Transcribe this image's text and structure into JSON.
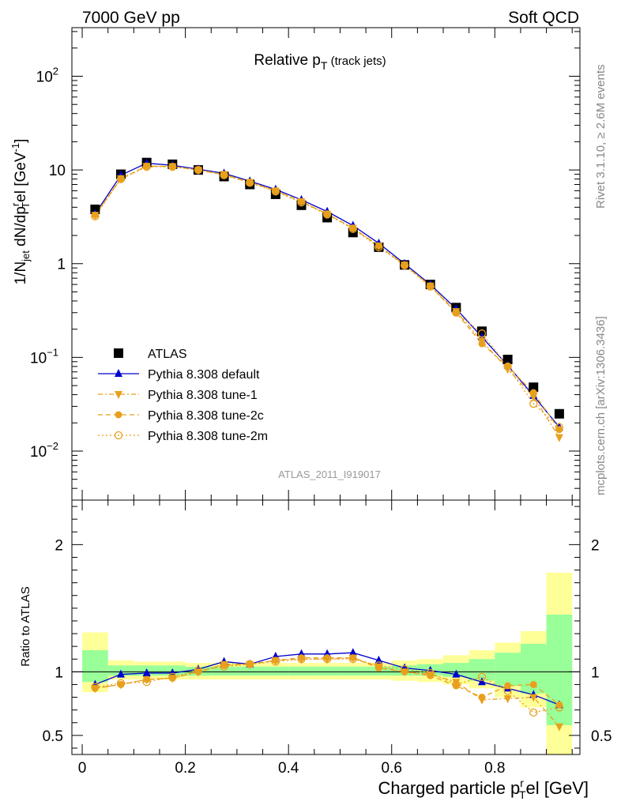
{
  "header": {
    "left": "7000 GeV pp",
    "right": "Soft QCD"
  },
  "side_text": {
    "rivet": "Rivet 3.1.10, ≥ 2.6M events",
    "mcplots": "mcplots.cern.ch [arXiv:1306.3436]"
  },
  "analysis_id": "ATLAS_2011_I919017",
  "colors": {
    "atlas": "#000000",
    "default": "#0000cc",
    "tunes": "#e8a01c",
    "band_green": "#99ff99",
    "band_yellow": "#ffff99"
  },
  "chart_data": [
    {
      "type": "scatter",
      "panel": "main",
      "title": {
        "main": "Relative p",
        "sub": "T",
        "suffix": " (track jets)"
      },
      "ylabel": {
        "a": "1/N",
        "a_sub": "jet",
        "b": " dN/dp",
        "b_sup": "r",
        "b_sub": "T",
        "c": "el [GeV",
        "c_sup": "-1",
        "d": "]"
      },
      "yscale": "log",
      "ylim": [
        0.003,
        330
      ],
      "xlim": [
        -0.02,
        0.965
      ],
      "y_tick_labels": [
        {
          "value": 0.01,
          "base": "10",
          "exp": "−2"
        },
        {
          "value": 0.1,
          "base": "10",
          "exp": "−1"
        },
        {
          "value": 1,
          "base": "1",
          "exp": ""
        },
        {
          "value": 10,
          "base": "10",
          "exp": ""
        },
        {
          "value": 100,
          "base": "10",
          "exp": "2"
        }
      ],
      "x": [
        0.025,
        0.075,
        0.125,
        0.175,
        0.225,
        0.275,
        0.325,
        0.375,
        0.425,
        0.475,
        0.525,
        0.575,
        0.625,
        0.675,
        0.725,
        0.775,
        0.825,
        0.875,
        0.925
      ],
      "series": [
        {
          "name": "ATLAS",
          "marker": "square",
          "values": [
            3.8,
            9.0,
            12.0,
            11.5,
            10.0,
            8.5,
            7.0,
            5.5,
            4.2,
            3.1,
            2.15,
            1.5,
            0.97,
            0.6,
            0.34,
            0.19,
            0.095,
            0.048,
            0.025
          ]
        },
        {
          "name": "Pythia 8.308 default",
          "marker": "triangle-up",
          "values": [
            3.4,
            8.8,
            11.8,
            11.2,
            10.2,
            9.2,
            7.6,
            6.2,
            4.8,
            3.6,
            2.55,
            1.65,
            1.0,
            0.6,
            0.33,
            0.165,
            0.082,
            0.039,
            0.018
          ]
        },
        {
          "name": "Pythia 8.308 tune-1",
          "marker": "triangle-down",
          "values": [
            3.3,
            8.1,
            11.0,
            10.9,
            10.0,
            9.0,
            7.4,
            6.0,
            4.6,
            3.4,
            2.4,
            1.55,
            0.97,
            0.58,
            0.31,
            0.15,
            0.075,
            0.038,
            0.014
          ]
        },
        {
          "name": "Pythia 8.308 tune-2c",
          "marker": "circle",
          "values": [
            3.3,
            8.1,
            11.0,
            10.9,
            10.0,
            8.9,
            7.4,
            6.0,
            4.6,
            3.4,
            2.4,
            1.55,
            0.97,
            0.58,
            0.3,
            0.14,
            0.08,
            0.042,
            0.017
          ]
        },
        {
          "name": "Pythia 8.308 tune-2m",
          "marker": "circle-open",
          "values": [
            3.2,
            8.0,
            10.8,
            10.8,
            10.0,
            8.8,
            7.3,
            5.9,
            4.5,
            3.35,
            2.35,
            1.5,
            0.96,
            0.57,
            0.3,
            0.18,
            0.08,
            0.032,
            0.018
          ]
        }
      ]
    },
    {
      "type": "scatter",
      "panel": "ratio",
      "ylabel": "Ratio to ATLAS",
      "xlabel": {
        "a": "Charged particle p",
        "a_sup": "r",
        "a_sub": "T",
        "b": "el [GeV]"
      },
      "xlim": [
        -0.02,
        0.965
      ],
      "ylim": [
        0.35,
        2.35
      ],
      "y_tick_labels": [
        0.5,
        1,
        2
      ],
      "x_tick_labels": [
        0,
        0.2,
        0.4,
        0.6,
        0.8
      ],
      "bin_edges": [
        0.0,
        0.05,
        0.1,
        0.15,
        0.2,
        0.25,
        0.3,
        0.35,
        0.4,
        0.45,
        0.5,
        0.55,
        0.6,
        0.65,
        0.7,
        0.75,
        0.8,
        0.85,
        0.9,
        0.95
      ],
      "band_stat": [
        [
          0.92,
          1.17
        ],
        [
          0.97,
          1.05
        ],
        [
          0.97,
          1.05
        ],
        [
          0.97,
          1.05
        ],
        [
          0.97,
          1.04
        ],
        [
          0.97,
          1.04
        ],
        [
          0.97,
          1.04
        ],
        [
          0.97,
          1.04
        ],
        [
          0.97,
          1.04
        ],
        [
          0.97,
          1.04
        ],
        [
          0.97,
          1.04
        ],
        [
          0.97,
          1.04
        ],
        [
          0.97,
          1.05
        ],
        [
          0.97,
          1.06
        ],
        [
          0.96,
          1.07
        ],
        [
          0.93,
          1.1
        ],
        [
          0.89,
          1.15
        ],
        [
          0.83,
          1.22
        ],
        [
          0.58,
          1.45
        ]
      ],
      "band_total": [
        [
          0.84,
          1.31
        ],
        [
          0.94,
          1.09
        ],
        [
          0.94,
          1.08
        ],
        [
          0.94,
          1.08
        ],
        [
          0.94,
          1.07
        ],
        [
          0.94,
          1.07
        ],
        [
          0.94,
          1.07
        ],
        [
          0.94,
          1.07
        ],
        [
          0.94,
          1.07
        ],
        [
          0.94,
          1.07
        ],
        [
          0.94,
          1.07
        ],
        [
          0.94,
          1.07
        ],
        [
          0.93,
          1.09
        ],
        [
          0.92,
          1.1
        ],
        [
          0.9,
          1.13
        ],
        [
          0.87,
          1.17
        ],
        [
          0.8,
          1.23
        ],
        [
          0.72,
          1.32
        ],
        [
          0.35,
          1.78
        ]
      ],
      "x": [
        0.025,
        0.075,
        0.125,
        0.175,
        0.225,
        0.275,
        0.325,
        0.375,
        0.425,
        0.475,
        0.525,
        0.575,
        0.625,
        0.675,
        0.725,
        0.775,
        0.825,
        0.875,
        0.925
      ],
      "series": [
        {
          "name": "Pythia 8.308 default",
          "marker": "triangle-up",
          "values": [
            0.9,
            0.98,
            0.99,
            0.99,
            1.02,
            1.08,
            1.06,
            1.12,
            1.14,
            1.14,
            1.15,
            1.09,
            1.03,
            1.01,
            0.98,
            0.92,
            0.87,
            0.82,
            0.74
          ]
        },
        {
          "name": "Pythia 8.308 tune-1",
          "marker": "triangle-down",
          "values": [
            0.87,
            0.9,
            0.94,
            0.95,
            1.0,
            1.06,
            1.06,
            1.09,
            1.1,
            1.1,
            1.11,
            1.04,
            1.0,
            0.98,
            0.92,
            0.78,
            0.79,
            0.8,
            0.57
          ]
        },
        {
          "name": "Pythia 8.308 tune-2c",
          "marker": "circle",
          "values": [
            0.87,
            0.9,
            0.94,
            0.95,
            1.0,
            1.05,
            1.06,
            1.09,
            1.11,
            1.11,
            1.11,
            1.03,
            1.0,
            0.97,
            0.89,
            0.8,
            0.89,
            0.9,
            0.74
          ]
        },
        {
          "name": "Pythia 8.308 tune-2m",
          "marker": "circle-open",
          "values": [
            0.88,
            0.91,
            0.92,
            0.96,
            1.01,
            1.04,
            1.06,
            1.08,
            1.1,
            1.1,
            1.1,
            1.05,
            1.02,
            0.99,
            0.9,
            0.96,
            0.85,
            0.68,
            0.72
          ]
        }
      ]
    }
  ]
}
